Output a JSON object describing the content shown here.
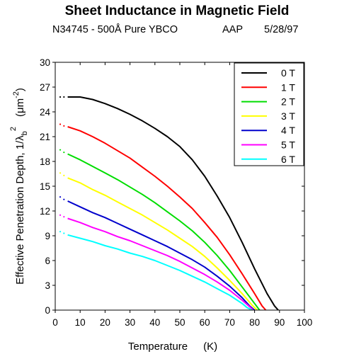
{
  "title": "Sheet Inductance in Magnetic Field",
  "subtitle": {
    "sample": "N34745 - 500Å Pure YBCO",
    "author": "AAP",
    "date": "5/28/97"
  },
  "chart_data": {
    "type": "line",
    "xlabel": "Temperature",
    "xunit": "(K)",
    "ylabel_main": "Effective Penetration Depth, 1/λ",
    "ylabel_sub": "b",
    "ylabel_sup": "2",
    "yunit": "(μm",
    "yunit_sup": "-2",
    "yunit_close": ")",
    "xlim": [
      0,
      100
    ],
    "ylim": [
      0,
      30
    ],
    "xticks": [
      "0",
      "10",
      "20",
      "30",
      "40",
      "50",
      "60",
      "70",
      "80",
      "90",
      "100"
    ],
    "yticks": [
      "0",
      "3",
      "6",
      "9",
      "12",
      "15",
      "18",
      "21",
      "24",
      "27",
      "30"
    ],
    "grid": false,
    "legend_position": "top-right",
    "series": [
      {
        "name": "0 T",
        "color": "#000000",
        "x": [
          5,
          10,
          15,
          20,
          25,
          30,
          35,
          40,
          45,
          50,
          55,
          60,
          65,
          70,
          75,
          80,
          85,
          88,
          89.5
        ],
        "y": [
          25.8,
          25.8,
          25.5,
          25.0,
          24.4,
          23.7,
          22.9,
          22.0,
          21.0,
          19.8,
          18.2,
          16.2,
          13.8,
          11.2,
          8.2,
          5.0,
          2.0,
          0.5,
          0
        ]
      },
      {
        "name": "1 T",
        "color": "#ff0000",
        "x": [
          5,
          10,
          15,
          20,
          25,
          30,
          35,
          40,
          45,
          50,
          55,
          60,
          65,
          70,
          75,
          80,
          83,
          84.5
        ],
        "y": [
          22.2,
          21.7,
          21.0,
          20.2,
          19.3,
          18.4,
          17.3,
          16.2,
          15.0,
          13.7,
          12.3,
          10.6,
          8.8,
          6.7,
          4.4,
          2.0,
          0.5,
          0
        ]
      },
      {
        "name": "2 T",
        "color": "#00dd00",
        "x": [
          5,
          10,
          15,
          20,
          25,
          30,
          35,
          40,
          45,
          50,
          55,
          60,
          65,
          70,
          75,
          80,
          82
        ],
        "y": [
          18.9,
          18.2,
          17.4,
          16.6,
          15.8,
          14.9,
          14.0,
          13.0,
          11.9,
          10.8,
          9.6,
          8.2,
          6.6,
          4.8,
          2.8,
          0.8,
          0
        ]
      },
      {
        "name": "3 T",
        "color": "#ffff00",
        "x": [
          5,
          10,
          15,
          20,
          25,
          30,
          35,
          40,
          45,
          50,
          55,
          60,
          65,
          70,
          75,
          79,
          81
        ],
        "y": [
          16.0,
          15.4,
          14.6,
          13.9,
          13.1,
          12.3,
          11.5,
          10.6,
          9.7,
          8.7,
          7.7,
          6.5,
          5.1,
          3.6,
          2.0,
          0.6,
          0
        ]
      },
      {
        "name": "4 T",
        "color": "#0000cc",
        "x": [
          5,
          10,
          15,
          20,
          25,
          30,
          35,
          40,
          45,
          50,
          55,
          60,
          65,
          70,
          75,
          78,
          80
        ],
        "y": [
          13.2,
          12.5,
          11.8,
          11.2,
          10.5,
          9.8,
          9.1,
          8.4,
          7.7,
          6.9,
          6.1,
          5.2,
          4.1,
          2.9,
          1.5,
          0.5,
          0
        ]
      },
      {
        "name": "5 T",
        "color": "#ff00ff",
        "x": [
          5,
          10,
          15,
          20,
          25,
          30,
          35,
          40,
          45,
          50,
          55,
          60,
          65,
          70,
          75,
          78,
          79.5
        ],
        "y": [
          11.1,
          10.6,
          10.0,
          9.5,
          8.9,
          8.4,
          7.8,
          7.2,
          6.6,
          5.9,
          5.1,
          4.3,
          3.4,
          2.4,
          1.2,
          0.4,
          0
        ]
      },
      {
        "name": "6 T",
        "color": "#00ffff",
        "x": [
          5,
          10,
          15,
          20,
          25,
          30,
          35,
          40,
          45,
          50,
          55,
          60,
          65,
          70,
          75,
          77,
          79
        ],
        "y": [
          9.1,
          8.7,
          8.3,
          7.8,
          7.4,
          6.9,
          6.5,
          6.0,
          5.4,
          4.8,
          4.1,
          3.4,
          2.6,
          1.8,
          0.8,
          0.3,
          0
        ]
      }
    ],
    "extrapolation_points": [
      {
        "x": [
          2,
          3.5
        ],
        "y": [
          25.8,
          25.8
        ]
      },
      {
        "x": [
          2,
          3.5
        ],
        "y": [
          22.5,
          22.3
        ]
      },
      {
        "x": [
          2,
          3.5
        ],
        "y": [
          19.4,
          19.1
        ]
      },
      {
        "x": [
          2,
          3.5
        ],
        "y": [
          16.6,
          16.3
        ]
      },
      {
        "x": [
          2,
          3.5
        ],
        "y": [
          13.7,
          13.4
        ]
      },
      {
        "x": [
          2,
          3.5
        ],
        "y": [
          11.5,
          11.3
        ]
      },
      {
        "x": [
          2,
          3.5
        ],
        "y": [
          9.5,
          9.3
        ]
      }
    ]
  }
}
